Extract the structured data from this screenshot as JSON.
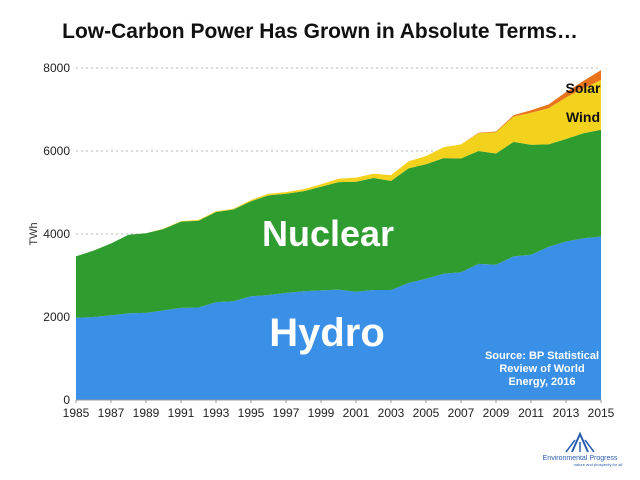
{
  "chart_data": {
    "type": "area",
    "title": "Low-Carbon Power Has Grown in Absolute Terms…",
    "ylabel": "TWh",
    "xlabel": "",
    "x": [
      1985,
      1986,
      1987,
      1988,
      1989,
      1990,
      1991,
      1992,
      1993,
      1994,
      1995,
      1996,
      1997,
      1998,
      1999,
      2000,
      2001,
      2002,
      2003,
      2004,
      2005,
      2006,
      2007,
      2008,
      2009,
      2010,
      2011,
      2012,
      2013,
      2014,
      2015
    ],
    "xticks": [
      "1985",
      "1987",
      "1989",
      "1991",
      "1993",
      "1995",
      "1997",
      "1999",
      "2001",
      "2003",
      "2005",
      "2007",
      "2009",
      "2011",
      "2013",
      "2015"
    ],
    "ylim": [
      0,
      8000
    ],
    "yticks": [
      "0",
      "2000",
      "4000",
      "6000",
      "8000"
    ],
    "stacked": true,
    "grid": true,
    "series": [
      {
        "name": "Hydro",
        "color": "#3a8fe6",
        "values": [
          1980,
          2000,
          2040,
          2090,
          2100,
          2160,
          2220,
          2230,
          2360,
          2380,
          2500,
          2530,
          2580,
          2620,
          2640,
          2660,
          2610,
          2650,
          2650,
          2820,
          2920,
          3040,
          3080,
          3280,
          3260,
          3460,
          3500,
          3690,
          3820,
          3900,
          3940
        ]
      },
      {
        "name": "Nuclear",
        "color": "#2f9c2f",
        "values": [
          1480,
          1600,
          1730,
          1890,
          1920,
          1960,
          2080,
          2090,
          2170,
          2210,
          2290,
          2400,
          2390,
          2410,
          2500,
          2590,
          2650,
          2700,
          2630,
          2760,
          2760,
          2790,
          2740,
          2720,
          2680,
          2760,
          2650,
          2470,
          2470,
          2530,
          2570
        ]
      },
      {
        "name": "Wind",
        "color": "#f2d21c",
        "values": [
          0,
          0,
          0,
          0,
          0,
          10,
          10,
          20,
          20,
          20,
          30,
          40,
          40,
          50,
          60,
          80,
          100,
          100,
          140,
          170,
          200,
          260,
          340,
          430,
          510,
          610,
          770,
          870,
          1000,
          1080,
          1200
        ]
      },
      {
        "name": "Solar",
        "color": "#e8731a",
        "values": [
          0,
          0,
          0,
          0,
          0,
          0,
          0,
          0,
          0,
          0,
          0,
          0,
          0,
          0,
          0,
          0,
          0,
          0,
          0,
          0,
          0,
          0,
          0,
          10,
          20,
          30,
          60,
          90,
          130,
          180,
          240
        ]
      }
    ],
    "labels": {
      "hydro": "Hydro",
      "nuclear": "Nuclear",
      "wind": "Wind",
      "solar": "Solar"
    },
    "source_lines": [
      "Source: BP Statistical",
      "Review of World",
      "Energy, 2016"
    ]
  },
  "logo": {
    "name": "Environmental Progress",
    "tagline": "nature and prosperity for all",
    "color": "#2a5db0"
  }
}
